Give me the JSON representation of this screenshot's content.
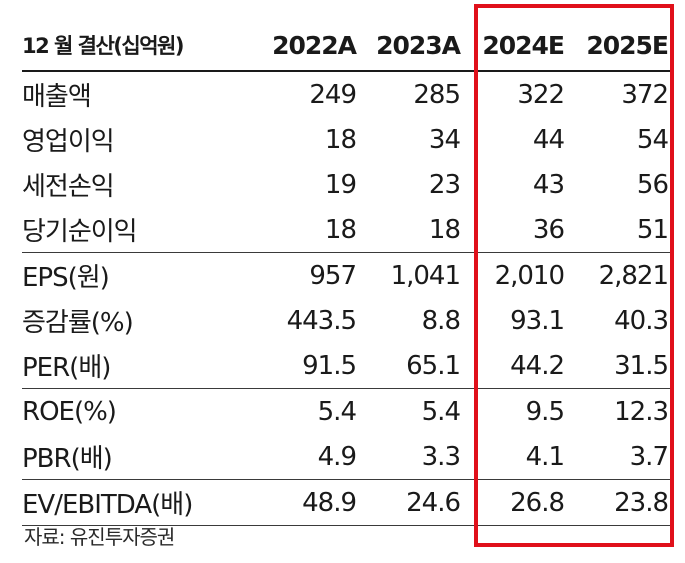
{
  "table": {
    "header": {
      "label": "12 월 결산(십억원)",
      "columns": [
        "2022A",
        "2023A",
        "2024E",
        "2025E"
      ]
    },
    "groups": [
      {
        "rows": [
          {
            "label": "매출액",
            "values": [
              "249",
              "285",
              "322",
              "372"
            ]
          },
          {
            "label": "영업이익",
            "values": [
              "18",
              "34",
              "44",
              "54"
            ]
          },
          {
            "label": "세전손익",
            "values": [
              "19",
              "23",
              "43",
              "56"
            ]
          },
          {
            "label": "당기순이익",
            "values": [
              "18",
              "18",
              "36",
              "51"
            ]
          }
        ]
      },
      {
        "rows": [
          {
            "label": "EPS(원)",
            "values": [
              "957",
              "1,041",
              "2,010",
              "2,821"
            ]
          },
          {
            "label": "증감률(%)",
            "values": [
              "443.5",
              "8.8",
              "93.1",
              "40.3"
            ]
          },
          {
            "label": "PER(배)",
            "values": [
              "91.5",
              "65.1",
              "44.2",
              "31.5"
            ]
          }
        ]
      },
      {
        "rows": [
          {
            "label": "ROE(%)",
            "values": [
              "5.4",
              "5.4",
              "9.5",
              "12.3"
            ]
          },
          {
            "label": "PBR(배)",
            "values": [
              "4.9",
              "3.3",
              "4.1",
              "3.7"
            ]
          }
        ]
      },
      {
        "rows": [
          {
            "label": "EV/EBITDA(배)",
            "values": [
              "48.9",
              "24.6",
              "26.8",
              "23.8"
            ]
          }
        ]
      }
    ]
  },
  "source": "자료: 유진투자증권",
  "colors": {
    "highlight": "#e0101a"
  }
}
